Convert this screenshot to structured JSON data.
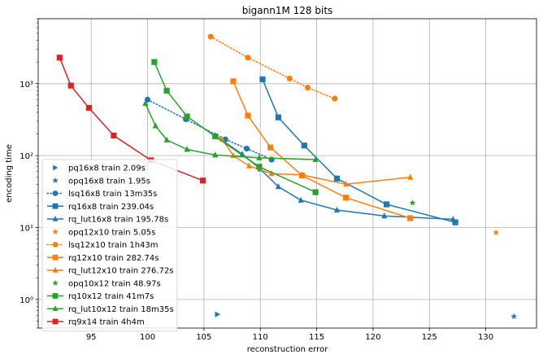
{
  "chart_data": {
    "type": "line",
    "title": "bigann1M 128 bits",
    "xlabel": "reconstruction error",
    "ylabel": "encoding time",
    "xlim": [
      90.3,
      134.5
    ],
    "ylim": [
      0.4,
      8000
    ],
    "yscale": "log",
    "grid": true,
    "legend_position": "lower-left",
    "x_ticks": [
      95,
      100,
      105,
      110,
      115,
      120,
      125,
      130
    ],
    "y_ticks": [
      {
        "value": 1,
        "label": "10⁰"
      },
      {
        "value": 10,
        "label": "10¹"
      },
      {
        "value": 100,
        "label": "10²"
      },
      {
        "value": 1000,
        "label": "10³"
      }
    ],
    "colors": {
      "C0": "#1f77b4",
      "C1": "#ff7f0e",
      "C2": "#2ca02c",
      "C3": "#d62728"
    },
    "series": [
      {
        "name": "pq16x8 train 2.09s",
        "color": "#1f77b4",
        "marker": "triangle-right",
        "line": "none",
        "points": [
          [
            106.2,
            0.62
          ]
        ]
      },
      {
        "name": "opq16x8 train 1.95s",
        "color": "#1f77b4",
        "marker": "star",
        "line": "none",
        "points": [
          [
            132.5,
            0.58
          ]
        ]
      },
      {
        "name": "lsq16x8 train 13m35s",
        "color": "#1f77b4",
        "marker": "circle",
        "line": "dotted",
        "points": [
          [
            100.0,
            600
          ],
          [
            103.4,
            320
          ],
          [
            106.9,
            168
          ],
          [
            108.8,
            125
          ],
          [
            111.0,
            88
          ]
        ]
      },
      {
        "name": "rq16x8 train 239.04s",
        "color": "#1f77b4",
        "marker": "square",
        "line": "solid",
        "points": [
          [
            110.2,
            1150
          ],
          [
            111.6,
            340
          ],
          [
            113.9,
            138
          ],
          [
            116.8,
            48
          ],
          [
            121.2,
            21
          ],
          [
            127.3,
            11.8
          ]
        ]
      },
      {
        "name": "rq_lut16x8 train 195.78s",
        "color": "#1f77b4",
        "marker": "triangle",
        "line": "solid",
        "points": [
          [
            106.0,
            190
          ],
          [
            108.4,
            105
          ],
          [
            110.0,
            65
          ],
          [
            111.6,
            37
          ],
          [
            113.6,
            24
          ],
          [
            116.8,
            17.5
          ],
          [
            121.0,
            14.5
          ],
          [
            127.1,
            13
          ]
        ]
      },
      {
        "name": "opq12x10 train 5.05s",
        "color": "#ff7f0e",
        "marker": "star",
        "line": "none",
        "points": [
          [
            130.9,
            8.5
          ]
        ]
      },
      {
        "name": "lsq12x10 train 1h43m",
        "color": "#ff7f0e",
        "marker": "circle",
        "line": "dotted",
        "points": [
          [
            105.6,
            4500
          ],
          [
            108.9,
            2300
          ],
          [
            112.6,
            1180
          ],
          [
            114.2,
            880
          ],
          [
            116.6,
            620
          ]
        ]
      },
      {
        "name": "rq12x10 train 282.74s",
        "color": "#ff7f0e",
        "marker": "square",
        "line": "solid",
        "points": [
          [
            107.6,
            1080
          ],
          [
            108.9,
            360
          ],
          [
            110.9,
            130
          ],
          [
            113.7,
            53
          ],
          [
            117.6,
            26
          ],
          [
            123.3,
            13.5
          ]
        ]
      },
      {
        "name": "rq_lut12x10 train 276.72s",
        "color": "#ff7f0e",
        "marker": "triangle",
        "line": "solid",
        "points": [
          [
            106.6,
            170
          ],
          [
            107.6,
            100
          ],
          [
            109.0,
            72
          ],
          [
            111.0,
            56
          ],
          [
            113.7,
            54
          ],
          [
            117.6,
            40
          ],
          [
            123.3,
            50
          ]
        ]
      },
      {
        "name": "opq10x12 train 48.97s",
        "color": "#2ca02c",
        "marker": "star",
        "line": "none",
        "points": [
          [
            123.5,
            22
          ]
        ]
      },
      {
        "name": "rq10x12 train 41m7s",
        "color": "#2ca02c",
        "marker": "square",
        "line": "solid",
        "points": [
          [
            100.6,
            2000
          ],
          [
            101.7,
            800
          ],
          [
            103.5,
            350
          ],
          [
            106.0,
            185
          ],
          [
            109.9,
            70
          ],
          [
            114.9,
            31
          ]
        ]
      },
      {
        "name": "rq_lut10x12 train 18m35s",
        "color": "#2ca02c",
        "marker": "triangle",
        "line": "solid",
        "points": [
          [
            99.8,
            530
          ],
          [
            100.7,
            260
          ],
          [
            101.7,
            165
          ],
          [
            103.5,
            122
          ],
          [
            106.0,
            102
          ],
          [
            109.9,
            93
          ],
          [
            114.9,
            88
          ]
        ]
      },
      {
        "name": "rq9x14 train 4h4m",
        "color": "#d62728",
        "marker": "square",
        "line": "solid",
        "points": [
          [
            92.2,
            2300
          ],
          [
            93.2,
            940
          ],
          [
            94.8,
            460
          ],
          [
            97.0,
            190
          ],
          [
            100.3,
            86
          ],
          [
            104.9,
            45
          ]
        ]
      }
    ]
  }
}
